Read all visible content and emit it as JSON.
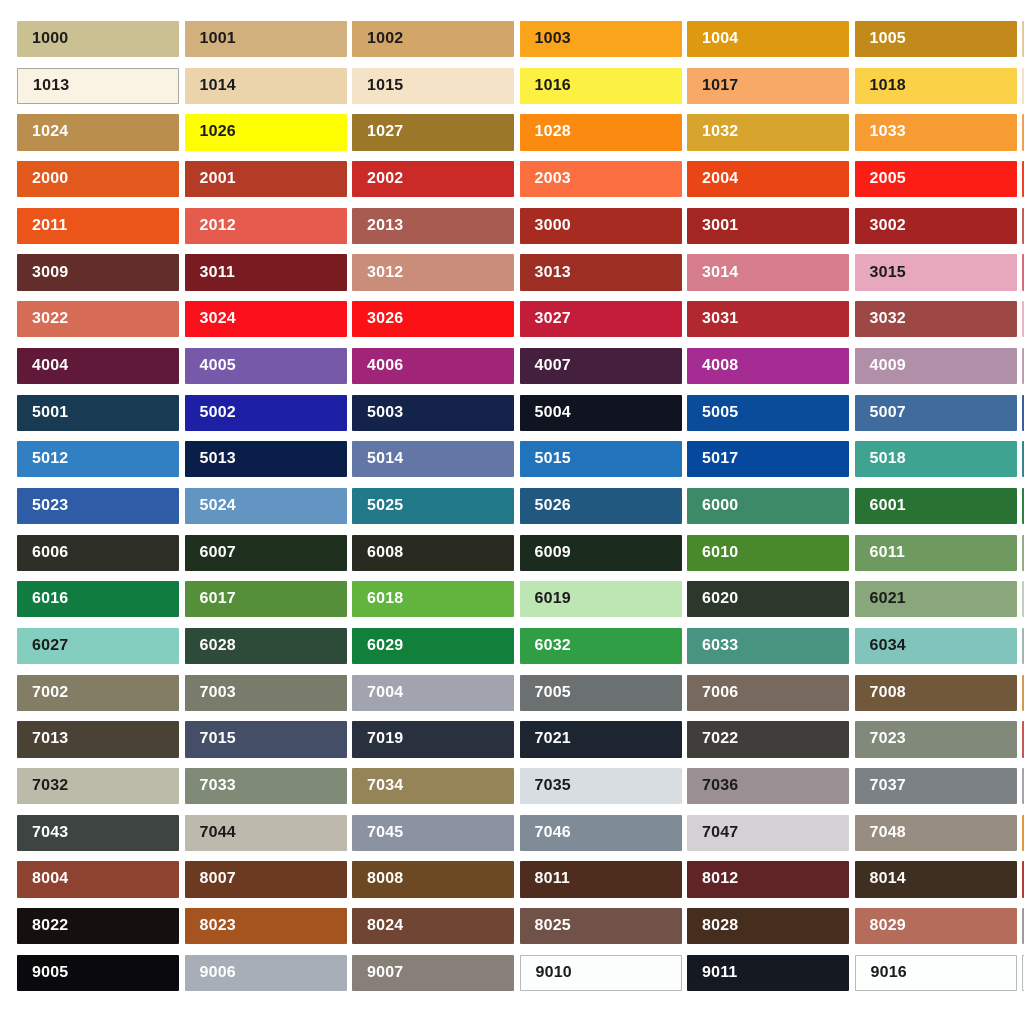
{
  "page": {
    "background": "#ffffff",
    "description": "RAL classic color swatch grid",
    "text_colors": {
      "dark": "#1b1b1b",
      "light": "#ffffff"
    }
  },
  "grid": {
    "rows": [
      {
        "cells": [
          {
            "code": "1000",
            "bg": "#CBC091",
            "text": "dark"
          },
          {
            "code": "1001",
            "bg": "#D1B07E",
            "text": "dark"
          },
          {
            "code": "1002",
            "bg": "#D2A668",
            "text": "dark"
          },
          {
            "code": "1003",
            "bg": "#F9A41A",
            "text": "dark"
          },
          {
            "code": "1004",
            "bg": "#DD990F",
            "text": "light"
          },
          {
            "code": "1005",
            "bg": "#C18A1A",
            "text": "light"
          }
        ],
        "cut": "#E6C7A0"
      },
      {
        "cells": [
          {
            "code": "1013",
            "bg": "#FAF2E2",
            "text": "dark",
            "border": "#A8A8A2"
          },
          {
            "code": "1014",
            "bg": "#EBD3AC",
            "text": "dark"
          },
          {
            "code": "1015",
            "bg": "#F5E3C7",
            "text": "dark"
          },
          {
            "code": "1016",
            "bg": "#FCF043",
            "text": "dark"
          },
          {
            "code": "1017",
            "bg": "#F9A967",
            "text": "dark"
          },
          {
            "code": "1018",
            "bg": "#FBD247",
            "text": "dark"
          }
        ],
        "cut": "#F6E0C8"
      },
      {
        "cells": [
          {
            "code": "1024",
            "bg": "#BA8F4D",
            "text": "light"
          },
          {
            "code": "1026",
            "bg": "#FEFE00",
            "text": "dark"
          },
          {
            "code": "1027",
            "bg": "#9B772A",
            "text": "light"
          },
          {
            "code": "1028",
            "bg": "#FA8B10",
            "text": "light"
          },
          {
            "code": "1032",
            "bg": "#D7A42E",
            "text": "light"
          },
          {
            "code": "1033",
            "bg": "#F79B33",
            "text": "light"
          }
        ],
        "cut": "#F0A050"
      },
      {
        "cells": [
          {
            "code": "2000",
            "bg": "#E2591D",
            "text": "light"
          },
          {
            "code": "2001",
            "bg": "#B43B25",
            "text": "light"
          },
          {
            "code": "2002",
            "bg": "#CB2B26",
            "text": "light"
          },
          {
            "code": "2003",
            "bg": "#FA6E3F",
            "text": "light"
          },
          {
            "code": "2004",
            "bg": "#EA4515",
            "text": "light"
          },
          {
            "code": "2005",
            "bg": "#FC1D15",
            "text": "light"
          }
        ],
        "cut": "#F04020"
      },
      {
        "cells": [
          {
            "code": "2011",
            "bg": "#EC5519",
            "text": "light"
          },
          {
            "code": "2012",
            "bg": "#E55C4E",
            "text": "light"
          },
          {
            "code": "2013",
            "bg": "#A85B50",
            "text": "light"
          },
          {
            "code": "3000",
            "bg": "#A82B22",
            "text": "light"
          },
          {
            "code": "3001",
            "bg": "#A32623",
            "text": "light"
          },
          {
            "code": "3002",
            "bg": "#A52423",
            "text": "light"
          }
        ],
        "cut": "#C06058"
      },
      {
        "cells": [
          {
            "code": "3009",
            "bg": "#632D29",
            "text": "light"
          },
          {
            "code": "3011",
            "bg": "#781C22",
            "text": "light"
          },
          {
            "code": "3012",
            "bg": "#C98D79",
            "text": "light"
          },
          {
            "code": "3013",
            "bg": "#9D2E24",
            "text": "light"
          },
          {
            "code": "3014",
            "bg": "#D67D8C",
            "text": "light"
          },
          {
            "code": "3015",
            "bg": "#E7A8BE",
            "text": "dark"
          }
        ],
        "cut": "#D66A7A"
      },
      {
        "cells": [
          {
            "code": "3022",
            "bg": "#D66C56",
            "text": "light"
          },
          {
            "code": "3024",
            "bg": "#FB0F1B",
            "text": "light"
          },
          {
            "code": "3026",
            "bg": "#FC1216",
            "text": "light"
          },
          {
            "code": "3027",
            "bg": "#C41D39",
            "text": "light"
          },
          {
            "code": "3031",
            "bg": "#B1282F",
            "text": "light"
          },
          {
            "code": "3032",
            "bg": "#9D4845",
            "text": "light"
          }
        ],
        "cut": "#EAB6C2"
      },
      {
        "cells": [
          {
            "code": "4004",
            "bg": "#601939",
            "text": "light"
          },
          {
            "code": "4005",
            "bg": "#7659A9",
            "text": "light"
          },
          {
            "code": "4006",
            "bg": "#A02478",
            "text": "light"
          },
          {
            "code": "4007",
            "bg": "#44203E",
            "text": "light"
          },
          {
            "code": "4008",
            "bg": "#A52C93",
            "text": "light"
          },
          {
            "code": "4009",
            "bg": "#B28FA9",
            "text": "light"
          }
        ],
        "cut": "#BC9EB4"
      },
      {
        "cells": [
          {
            "code": "5001",
            "bg": "#183A52",
            "text": "light"
          },
          {
            "code": "5002",
            "bg": "#1D1FA5",
            "text": "light"
          },
          {
            "code": "5003",
            "bg": "#142349",
            "text": "light"
          },
          {
            "code": "5004",
            "bg": "#0F1420",
            "text": "light"
          },
          {
            "code": "5005",
            "bg": "#0A4C99",
            "text": "light"
          },
          {
            "code": "5007",
            "bg": "#3F6C9D",
            "text": "light"
          }
        ],
        "cut": "#3C5C9C"
      },
      {
        "cells": [
          {
            "code": "5012",
            "bg": "#3180C4",
            "text": "light"
          },
          {
            "code": "5013",
            "bg": "#0A1E4A",
            "text": "light"
          },
          {
            "code": "5014",
            "bg": "#6277A6",
            "text": "light"
          },
          {
            "code": "5015",
            "bg": "#2173BB",
            "text": "light"
          },
          {
            "code": "5017",
            "bg": "#05499E",
            "text": "light"
          },
          {
            "code": "5018",
            "bg": "#3FA392",
            "text": "light"
          }
        ],
        "cut": "#37848E"
      },
      {
        "cells": [
          {
            "code": "5023",
            "bg": "#2E5CA6",
            "text": "light"
          },
          {
            "code": "5024",
            "bg": "#6295C1",
            "text": "light"
          },
          {
            "code": "5025",
            "bg": "#21798A",
            "text": "light"
          },
          {
            "code": "5026",
            "bg": "#205880",
            "text": "light"
          },
          {
            "code": "6000",
            "bg": "#3D8A69",
            "text": "light"
          },
          {
            "code": "6001",
            "bg": "#287234",
            "text": "light"
          }
        ],
        "cut": "#2E7F42"
      },
      {
        "cells": [
          {
            "code": "6006",
            "bg": "#2E3027",
            "text": "light"
          },
          {
            "code": "6007",
            "bg": "#1F301E",
            "text": "light"
          },
          {
            "code": "6008",
            "bg": "#292B21",
            "text": "light"
          },
          {
            "code": "6009",
            "bg": "#1B2C1E",
            "text": "light"
          },
          {
            "code": "6010",
            "bg": "#4A882C",
            "text": "light"
          },
          {
            "code": "6011",
            "bg": "#6E9A60",
            "text": "light"
          }
        ],
        "cut": "#92AC86"
      },
      {
        "cells": [
          {
            "code": "6016",
            "bg": "#117C40",
            "text": "light"
          },
          {
            "code": "6017",
            "bg": "#568F39",
            "text": "light"
          },
          {
            "code": "6018",
            "bg": "#62B43F",
            "text": "light"
          },
          {
            "code": "6019",
            "bg": "#BEE6B4",
            "text": "dark"
          },
          {
            "code": "6020",
            "bg": "#2B382B",
            "text": "light"
          },
          {
            "code": "6021",
            "bg": "#8AA77B",
            "text": "dark"
          }
        ],
        "cut": "#C2CFC0"
      },
      {
        "cells": [
          {
            "code": "6027",
            "bg": "#84CEC0",
            "text": "dark"
          },
          {
            "code": "6028",
            "bg": "#2E4B39",
            "text": "light"
          },
          {
            "code": "6029",
            "bg": "#10803A",
            "text": "light"
          },
          {
            "code": "6032",
            "bg": "#2F9E45",
            "text": "light"
          },
          {
            "code": "6033",
            "bg": "#499481",
            "text": "light"
          },
          {
            "code": "6034",
            "bg": "#81C4BB",
            "text": "dark"
          }
        ],
        "cut": "#9FB6B2"
      },
      {
        "cells": [
          {
            "code": "7002",
            "bg": "#837D66",
            "text": "light"
          },
          {
            "code": "7003",
            "bg": "#7A7C6B",
            "text": "light"
          },
          {
            "code": "7004",
            "bg": "#A1A3AE",
            "text": "light"
          },
          {
            "code": "7005",
            "bg": "#6B7171",
            "text": "light"
          },
          {
            "code": "7006",
            "bg": "#77695D",
            "text": "light"
          },
          {
            "code": "7008",
            "bg": "#71583A",
            "text": "light"
          }
        ],
        "cut": "#D29A58"
      },
      {
        "cells": [
          {
            "code": "7013",
            "bg": "#4A4235",
            "text": "light"
          },
          {
            "code": "7015",
            "bg": "#444E66",
            "text": "light"
          },
          {
            "code": "7019",
            "bg": "#28313D",
            "text": "light"
          },
          {
            "code": "7021",
            "bg": "#1D2530",
            "text": "light"
          },
          {
            "code": "7022",
            "bg": "#403E3A",
            "text": "light"
          },
          {
            "code": "7023",
            "bg": "#81897A",
            "text": "light"
          }
        ],
        "cut": "#C25A50"
      },
      {
        "cells": [
          {
            "code": "7032",
            "bg": "#BCBBAA",
            "text": "dark"
          },
          {
            "code": "7033",
            "bg": "#808B77",
            "text": "light"
          },
          {
            "code": "7034",
            "bg": "#968459",
            "text": "light"
          },
          {
            "code": "7035",
            "bg": "#D7DDE1",
            "text": "dark"
          },
          {
            "code": "7036",
            "bg": "#9A8F93",
            "text": "dark"
          },
          {
            "code": "7037",
            "bg": "#7C8186",
            "text": "light"
          }
        ],
        "cut": "#A2A6AA"
      },
      {
        "cells": [
          {
            "code": "7043",
            "bg": "#3D4441",
            "text": "light"
          },
          {
            "code": "7044",
            "bg": "#BDB9AD",
            "text": "dark"
          },
          {
            "code": "7045",
            "bg": "#8B92A2",
            "text": "light"
          },
          {
            "code": "7046",
            "bg": "#7F8C97",
            "text": "light"
          },
          {
            "code": "7047",
            "bg": "#D4D1D5",
            "text": "dark"
          },
          {
            "code": "7048",
            "bg": "#978D80",
            "text": "light"
          }
        ],
        "cut": "#DE9A42"
      },
      {
        "cells": [
          {
            "code": "8004",
            "bg": "#8E4230",
            "text": "light"
          },
          {
            "code": "8007",
            "bg": "#6B3A21",
            "text": "light"
          },
          {
            "code": "8008",
            "bg": "#6C4923",
            "text": "light"
          },
          {
            "code": "8011",
            "bg": "#4E2D1E",
            "text": "light"
          },
          {
            "code": "8012",
            "bg": "#602427",
            "text": "light"
          },
          {
            "code": "8014",
            "bg": "#3E2F20",
            "text": "light"
          }
        ],
        "cut": "#B23A32"
      },
      {
        "cells": [
          {
            "code": "8022",
            "bg": "#15100F",
            "text": "light"
          },
          {
            "code": "8023",
            "bg": "#A5531F",
            "text": "light"
          },
          {
            "code": "8024",
            "bg": "#704533",
            "text": "light"
          },
          {
            "code": "8025",
            "bg": "#705248",
            "text": "light"
          },
          {
            "code": "8028",
            "bg": "#462E1E",
            "text": "light"
          },
          {
            "code": "8029",
            "bg": "#B56C5B",
            "text": "light"
          }
        ],
        "cut": "#9C9C9C"
      },
      {
        "cells": [
          {
            "code": "9005",
            "bg": "#0A0A0D",
            "text": "light"
          },
          {
            "code": "9006",
            "bg": "#A7AEB7",
            "text": "light"
          },
          {
            "code": "9007",
            "bg": "#868078",
            "text": "light"
          },
          {
            "code": "9010",
            "bg": "#FBFEFD",
            "text": "dark",
            "border": "#B6BAB8"
          },
          {
            "code": "9011",
            "bg": "#141922",
            "text": "light"
          },
          {
            "code": "9016",
            "bg": "#FCFFFE",
            "text": "dark",
            "border": "#B6BAB8"
          }
        ],
        "cut": "#FDFFFE",
        "cut_border": "#B6BAB8"
      }
    ]
  }
}
